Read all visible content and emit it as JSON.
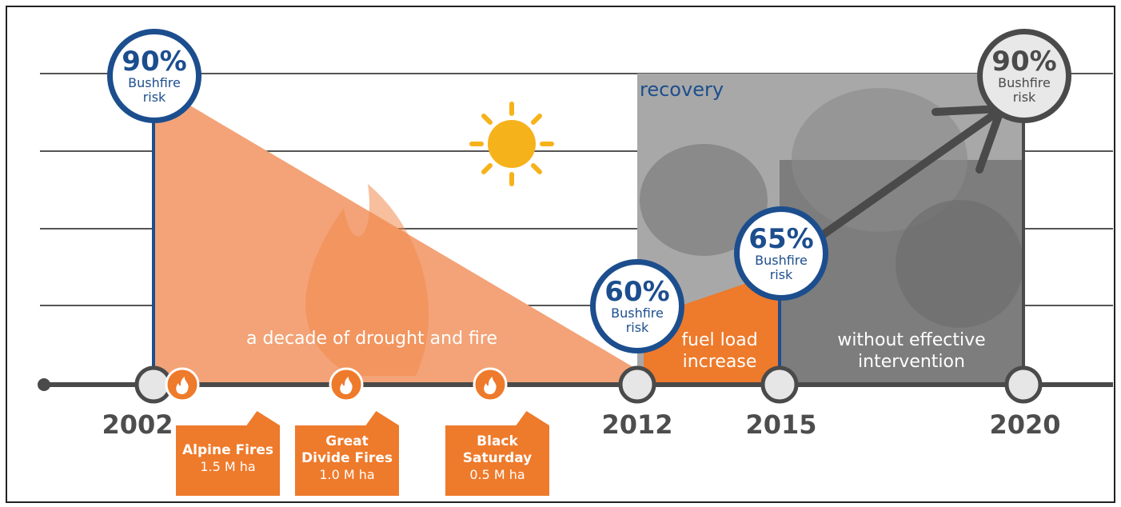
{
  "milestones": [
    {
      "year": "2002",
      "risk": "90%",
      "label": "Bushfire risk"
    },
    {
      "year": "2012",
      "risk": "60%",
      "label": "Bushfire risk"
    },
    {
      "year": "2015",
      "risk": "65%",
      "label": "Bushfire risk"
    },
    {
      "year": "2020",
      "risk": "90%",
      "label": "Bushfire risk"
    }
  ],
  "fires": [
    {
      "name": "Alpine Fires",
      "area": "1.5 M ha"
    },
    {
      "name": "Great Divide Fires",
      "area": "1.0 M ha"
    },
    {
      "name": "Black Saturday",
      "area": "0.5 M ha"
    }
  ],
  "phases": {
    "drought": "a decade of drought and fire",
    "recovery": "recovery",
    "fuel": "fuel load increase",
    "intervention": "without effective intervention"
  }
}
